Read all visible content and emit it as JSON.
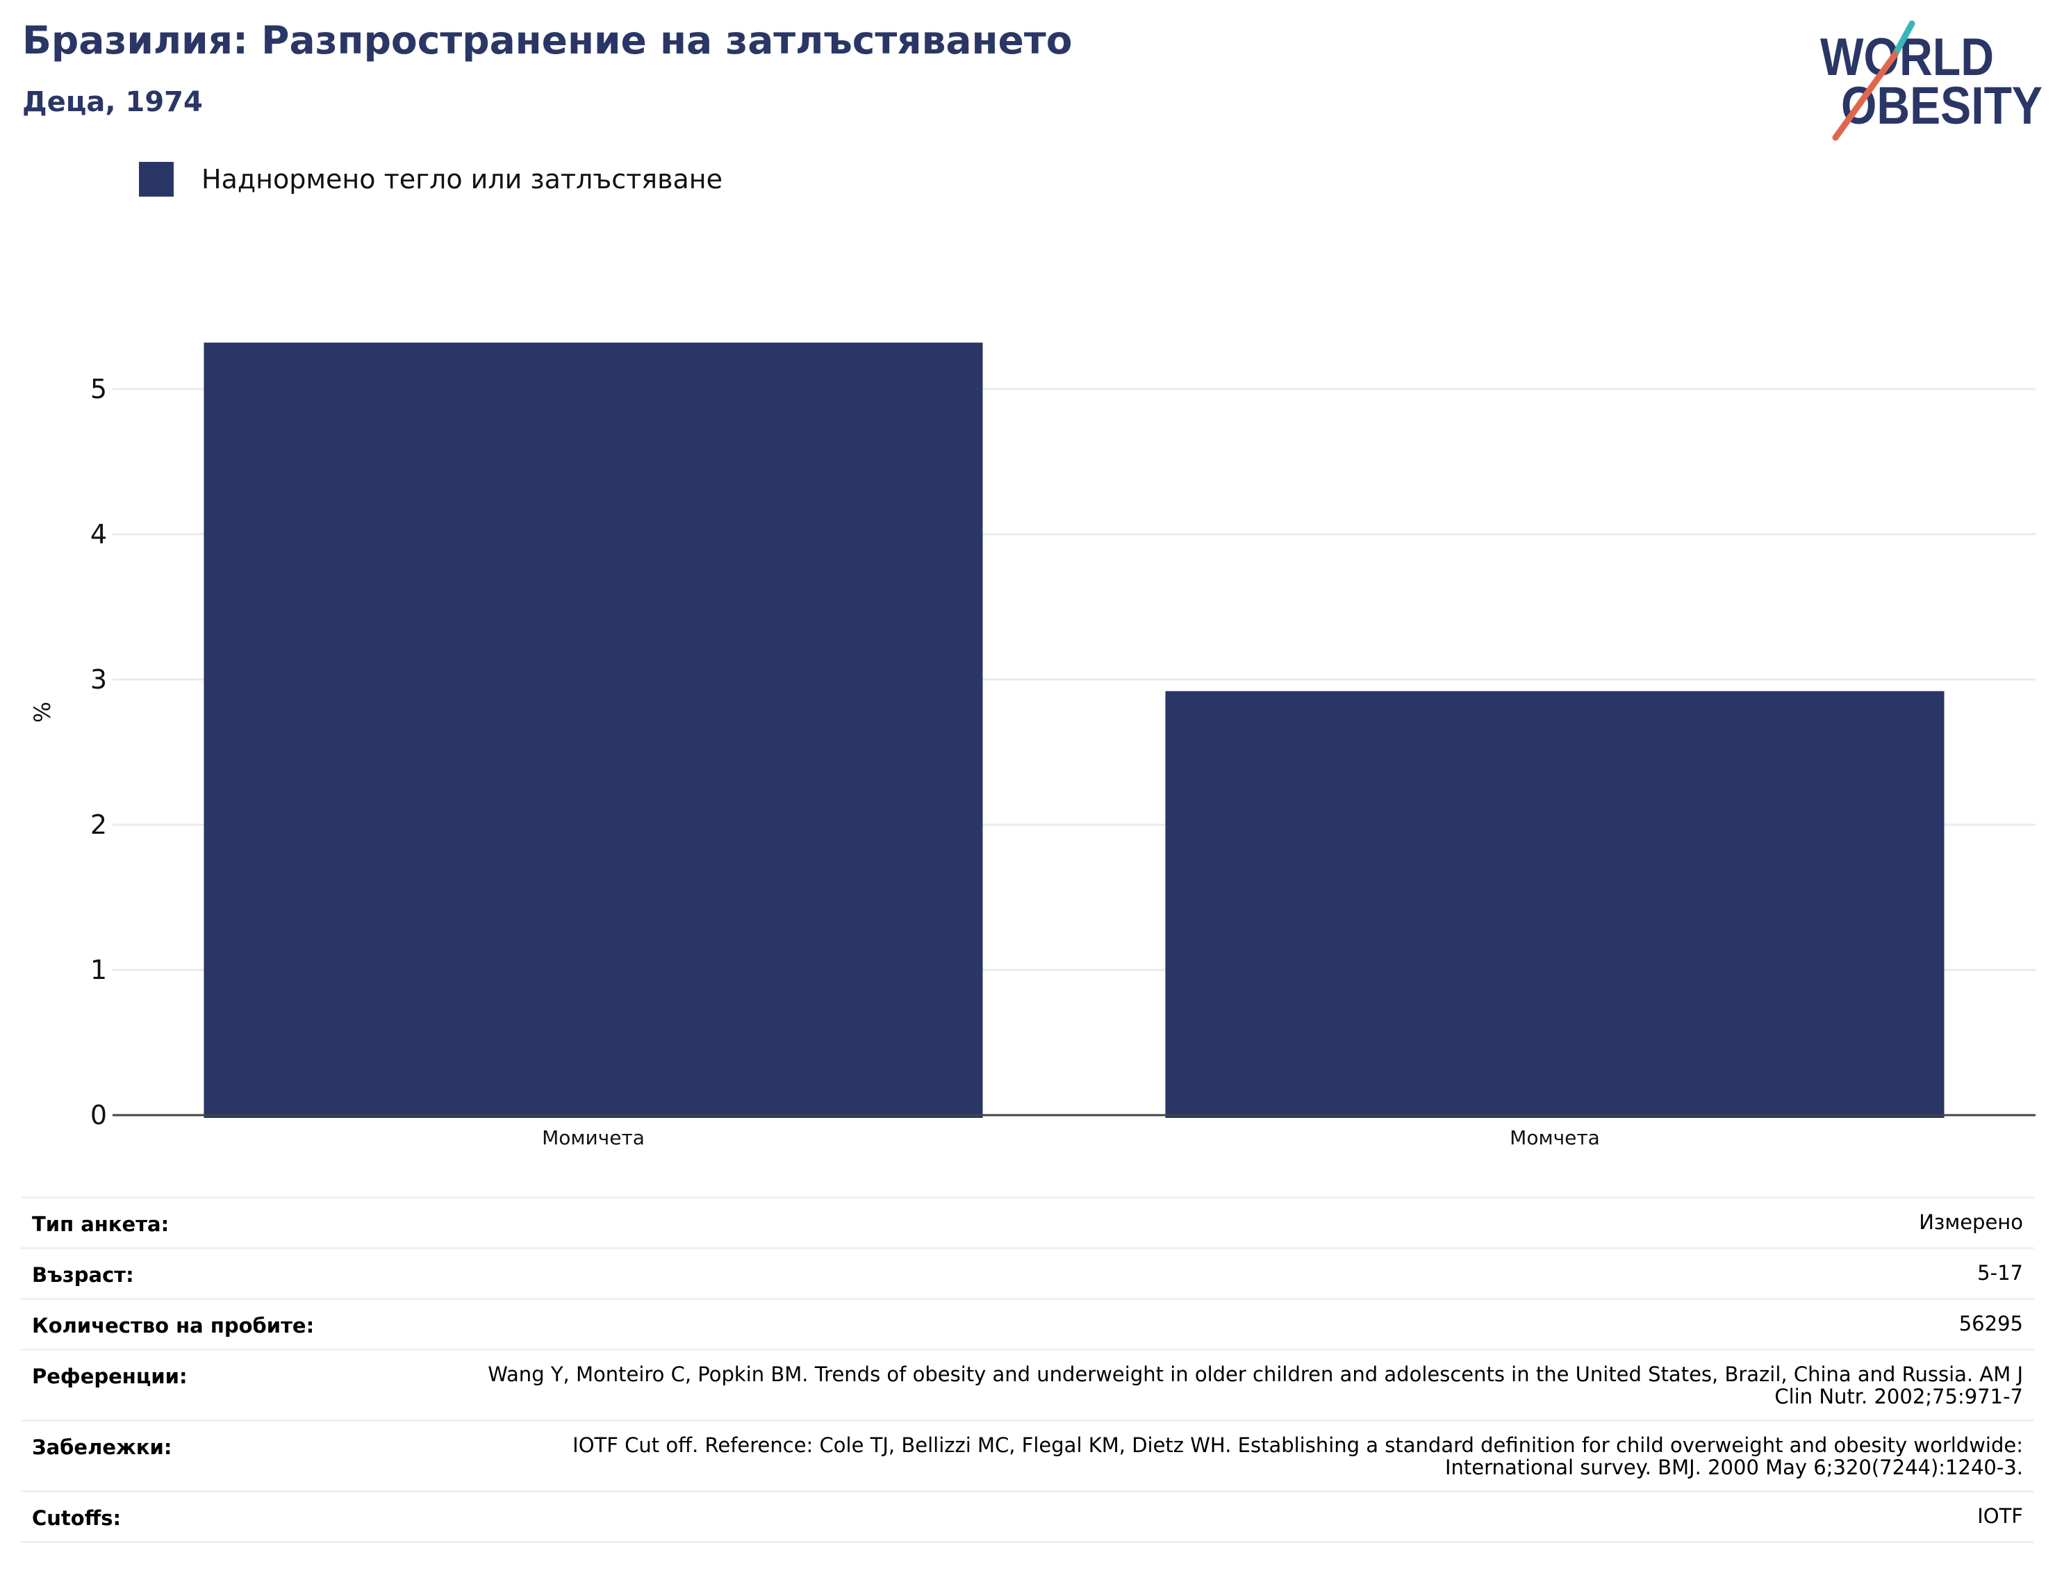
{
  "header": {
    "title": "Бразилия: Разпространение на затлъстяването",
    "subtitle": "Деца, 1974"
  },
  "logo": {
    "line1": "WORLD",
    "line2": "OBESITY",
    "colors": {
      "text": "#2a3665",
      "slash_red": "#e0674f",
      "slash_teal": "#3bb6b8"
    }
  },
  "legend": {
    "items": [
      {
        "label": "Наднормено тегло или затлъстяване",
        "color": "#2a3665"
      }
    ]
  },
  "chart_data": {
    "type": "bar",
    "title": "Бразилия: Разпространение на затлъстяването",
    "subtitle": "Деца, 1974",
    "categories": [
      "Момичета",
      "Момчета"
    ],
    "series": [
      {
        "name": "Наднормено тегло или затлъстяване",
        "values": [
          5.32,
          2.92
        ],
        "color": "#2a3665"
      }
    ],
    "xlabel": "",
    "ylabel": "%",
    "ylim": [
      0,
      5.7
    ],
    "yticks": [
      0,
      1,
      2,
      3,
      4,
      5
    ],
    "grid": true,
    "legend_position": "top-left"
  },
  "info": {
    "rows": [
      {
        "key": "Тип анкета:",
        "value": "Измерено"
      },
      {
        "key": "Възраст:",
        "value": "5-17"
      },
      {
        "key": "Количество на пробите:",
        "value": "56295"
      },
      {
        "key": "Референции:",
        "value": "Wang Y, Monteiro C, Popkin BM. Trends of obesity and underweight in older children and adolescents in the United States, Brazil, China and Russia. AM J Clin Nutr. 2002;75:971-7"
      },
      {
        "key": "Забележки:",
        "value": "IOTF Cut off. Reference: Cole TJ, Bellizzi MC, Flegal KM, Dietz WH. Establishing a standard definition for child overweight and obesity worldwide: International survey. BMJ. 2000 May 6;320(7244):1240-3."
      },
      {
        "key": "Cutoffs:",
        "value": "IOTF"
      }
    ]
  }
}
